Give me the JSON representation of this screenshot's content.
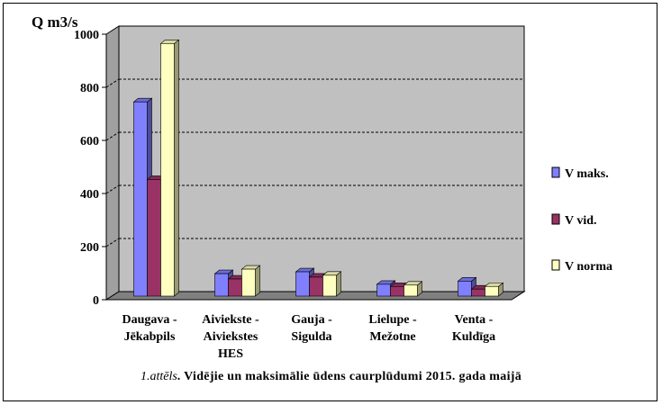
{
  "chart_data": {
    "type": "bar",
    "title": "",
    "ylabel": "Q m3/s",
    "xlabel": "",
    "ylim": [
      0,
      1000
    ],
    "yticks": [
      0,
      200,
      400,
      600,
      800,
      1000
    ],
    "grid": true,
    "legend_position": "right",
    "categories": [
      [
        "Daugava -",
        "Jēkabpils"
      ],
      [
        "Aiviekste -",
        "Aiviekstes",
        "HES"
      ],
      [
        "Gauja -",
        "Sigulda"
      ],
      [
        "Lielupe -",
        "Mežotne"
      ],
      [
        "Venta -",
        "Kuldīga"
      ]
    ],
    "series": [
      {
        "name": "V maks.",
        "color": "#8080ff",
        "values": [
          745,
          98,
          105,
          58,
          70
        ]
      },
      {
        "name": "V vid.",
        "color": "#993366",
        "values": [
          453,
          78,
          85,
          50,
          40
        ]
      },
      {
        "name": "V norma",
        "color": "#ffffc0",
        "values": [
          965,
          115,
          92,
          55,
          50
        ]
      }
    ]
  },
  "caption": {
    "number": "1.attēls",
    "text": ". Vidējie un maksimālie ūdens caurplūdumi  2015. gada maijā"
  }
}
